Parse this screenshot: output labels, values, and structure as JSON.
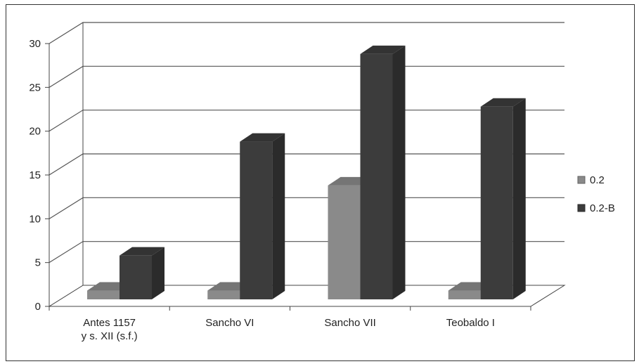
{
  "chart_data": {
    "type": "bar",
    "title": "",
    "xlabel": "",
    "ylabel": "",
    "ylim": [
      0,
      30
    ],
    "yticks": [
      0,
      5,
      10,
      15,
      20,
      25,
      30
    ],
    "categories": [
      [
        "Antes 1157",
        "y s. XII (s.f.)"
      ],
      [
        "Sancho VI"
      ],
      [
        "Sancho VII"
      ],
      [
        "Teobaldo I"
      ]
    ],
    "series": [
      {
        "name": "0.2",
        "values": [
          1,
          1,
          13,
          1
        ],
        "color": "#8a8a8a"
      },
      {
        "name": "0.2-B",
        "values": [
          5,
          18,
          28,
          22
        ],
        "color": "#3c3c3c"
      }
    ],
    "grid": true,
    "legend": "right",
    "three_d": true
  }
}
